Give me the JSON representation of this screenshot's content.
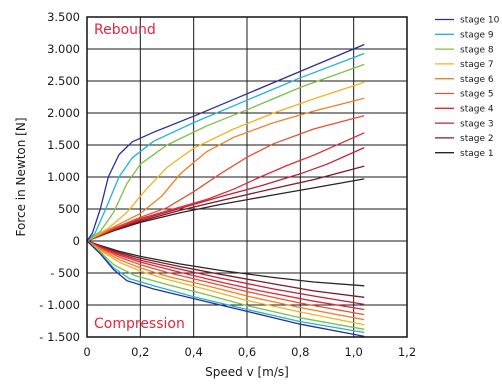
{
  "chart_data": {
    "type": "line",
    "xlabel": "Speed v [m/s]",
    "ylabel": "Force in Newton [N]",
    "xlim": [
      0,
      1.2
    ],
    "ylim": [
      -1500,
      3500
    ],
    "x_ticks": [
      0,
      0.2,
      0.4,
      0.6,
      0.8,
      1.0,
      1.2
    ],
    "x_tick_labels": [
      "0",
      "0,2",
      "0,4",
      "0,6",
      "0,8",
      "1,0",
      "1,2"
    ],
    "y_ticks": [
      -1500,
      -1000,
      -500,
      0,
      500,
      1000,
      1500,
      2000,
      2500,
      3000,
      3500
    ],
    "y_tick_labels": [
      "- 1.500",
      "- 1.000",
      "- 500",
      "0",
      "500",
      "1.000",
      "1.500",
      "2.000",
      "2.500",
      "3.000",
      "3.500"
    ],
    "grid": true,
    "legend_position": "right",
    "annotations": [
      {
        "text": "Rebound",
        "color": "#e3263b",
        "region": "top-left"
      },
      {
        "text": "Compression",
        "color": "#e3263b",
        "region": "bottom-left"
      }
    ],
    "series": [
      {
        "name": "stage 10",
        "color": "#2b2f9a",
        "rebound": [
          [
            0,
            0
          ],
          [
            0.02,
            120
          ],
          [
            0.05,
            500
          ],
          [
            0.08,
            1000
          ],
          [
            0.12,
            1350
          ],
          [
            0.17,
            1550
          ],
          [
            0.25,
            1700
          ],
          [
            0.4,
            1950
          ],
          [
            0.6,
            2300
          ],
          [
            0.8,
            2650
          ],
          [
            1.04,
            3070
          ]
        ],
        "compression": [
          [
            0,
            0
          ],
          [
            0.05,
            -200
          ],
          [
            0.1,
            -450
          ],
          [
            0.15,
            -620
          ],
          [
            0.25,
            -750
          ],
          [
            0.4,
            -900
          ],
          [
            0.6,
            -1100
          ],
          [
            0.8,
            -1300
          ],
          [
            1.04,
            -1490
          ]
        ]
      },
      {
        "name": "stage 9",
        "color": "#1fb5d6",
        "rebound": [
          [
            0,
            0
          ],
          [
            0.03,
            120
          ],
          [
            0.07,
            500
          ],
          [
            0.12,
            1000
          ],
          [
            0.17,
            1300
          ],
          [
            0.25,
            1560
          ],
          [
            0.4,
            1850
          ],
          [
            0.6,
            2200
          ],
          [
            0.8,
            2550
          ],
          [
            1.04,
            2930
          ]
        ],
        "compression": [
          [
            0,
            0
          ],
          [
            0.05,
            -190
          ],
          [
            0.1,
            -420
          ],
          [
            0.16,
            -590
          ],
          [
            0.25,
            -700
          ],
          [
            0.4,
            -870
          ],
          [
            0.6,
            -1070
          ],
          [
            0.8,
            -1260
          ],
          [
            1.04,
            -1430
          ]
        ]
      },
      {
        "name": "stage 8",
        "color": "#7cc242",
        "rebound": [
          [
            0,
            0
          ],
          [
            0.05,
            150
          ],
          [
            0.1,
            450
          ],
          [
            0.15,
            900
          ],
          [
            0.2,
            1200
          ],
          [
            0.3,
            1500
          ],
          [
            0.45,
            1800
          ],
          [
            0.6,
            2050
          ],
          [
            0.8,
            2400
          ],
          [
            1.04,
            2760
          ]
        ],
        "compression": [
          [
            0,
            0
          ],
          [
            0.05,
            -170
          ],
          [
            0.1,
            -370
          ],
          [
            0.18,
            -540
          ],
          [
            0.3,
            -680
          ],
          [
            0.45,
            -840
          ],
          [
            0.6,
            -1010
          ],
          [
            0.8,
            -1200
          ],
          [
            1.04,
            -1380
          ]
        ]
      },
      {
        "name": "stage 7",
        "color": "#f6b21d",
        "rebound": [
          [
            0,
            0
          ],
          [
            0.08,
            200
          ],
          [
            0.15,
            450
          ],
          [
            0.22,
            800
          ],
          [
            0.3,
            1150
          ],
          [
            0.4,
            1450
          ],
          [
            0.55,
            1750
          ],
          [
            0.7,
            2000
          ],
          [
            0.85,
            2220
          ],
          [
            1.04,
            2480
          ]
        ],
        "compression": [
          [
            0,
            0
          ],
          [
            0.05,
            -150
          ],
          [
            0.12,
            -330
          ],
          [
            0.2,
            -470
          ],
          [
            0.3,
            -600
          ],
          [
            0.45,
            -760
          ],
          [
            0.6,
            -930
          ],
          [
            0.8,
            -1110
          ],
          [
            1.04,
            -1310
          ]
        ]
      },
      {
        "name": "stage 6",
        "color": "#f07e2d",
        "rebound": [
          [
            0,
            0
          ],
          [
            0.1,
            220
          ],
          [
            0.2,
            430
          ],
          [
            0.28,
            700
          ],
          [
            0.35,
            1050
          ],
          [
            0.45,
            1400
          ],
          [
            0.55,
            1620
          ],
          [
            0.7,
            1850
          ],
          [
            0.85,
            2030
          ],
          [
            1.04,
            2230
          ]
        ],
        "compression": [
          [
            0,
            0
          ],
          [
            0.05,
            -130
          ],
          [
            0.12,
            -290
          ],
          [
            0.2,
            -420
          ],
          [
            0.3,
            -550
          ],
          [
            0.45,
            -700
          ],
          [
            0.6,
            -860
          ],
          [
            0.8,
            -1040
          ],
          [
            1.04,
            -1230
          ]
        ]
      },
      {
        "name": "stage 5",
        "color": "#ec4f32",
        "rebound": [
          [
            0,
            0
          ],
          [
            0.1,
            200
          ],
          [
            0.2,
            370
          ],
          [
            0.3,
            520
          ],
          [
            0.4,
            770
          ],
          [
            0.5,
            1050
          ],
          [
            0.6,
            1310
          ],
          [
            0.7,
            1520
          ],
          [
            0.85,
            1750
          ],
          [
            1.04,
            1960
          ]
        ],
        "compression": [
          [
            0,
            0
          ],
          [
            0.05,
            -110
          ],
          [
            0.12,
            -250
          ],
          [
            0.2,
            -370
          ],
          [
            0.3,
            -490
          ],
          [
            0.45,
            -640
          ],
          [
            0.6,
            -790
          ],
          [
            0.8,
            -970
          ],
          [
            1.04,
            -1150
          ]
        ]
      },
      {
        "name": "stage 4",
        "color": "#e32a33",
        "rebound": [
          [
            0,
            0
          ],
          [
            0.1,
            190
          ],
          [
            0.2,
            350
          ],
          [
            0.3,
            470
          ],
          [
            0.45,
            650
          ],
          [
            0.55,
            810
          ],
          [
            0.65,
            1000
          ],
          [
            0.75,
            1180
          ],
          [
            0.85,
            1340
          ],
          [
            1.04,
            1690
          ]
        ],
        "compression": [
          [
            0,
            0
          ],
          [
            0.05,
            -100
          ],
          [
            0.12,
            -220
          ],
          [
            0.2,
            -330
          ],
          [
            0.35,
            -490
          ],
          [
            0.5,
            -640
          ],
          [
            0.65,
            -780
          ],
          [
            0.85,
            -940
          ],
          [
            1.04,
            -1070
          ]
        ]
      },
      {
        "name": "stage 3",
        "color": "#c41e3a",
        "rebound": [
          [
            0,
            0
          ],
          [
            0.1,
            180
          ],
          [
            0.2,
            330
          ],
          [
            0.35,
            510
          ],
          [
            0.5,
            690
          ],
          [
            0.65,
            860
          ],
          [
            0.8,
            1050
          ],
          [
            0.9,
            1200
          ],
          [
            1.04,
            1460
          ]
        ],
        "compression": [
          [
            0,
            0
          ],
          [
            0.05,
            -90
          ],
          [
            0.12,
            -200
          ],
          [
            0.2,
            -300
          ],
          [
            0.35,
            -440
          ],
          [
            0.5,
            -580
          ],
          [
            0.7,
            -750
          ],
          [
            0.85,
            -860
          ],
          [
            1.04,
            -990
          ]
        ]
      },
      {
        "name": "stage 2",
        "color": "#7d1a25",
        "rebound": [
          [
            0,
            0
          ],
          [
            0.1,
            170
          ],
          [
            0.2,
            310
          ],
          [
            0.35,
            480
          ],
          [
            0.5,
            630
          ],
          [
            0.7,
            820
          ],
          [
            0.85,
            960
          ],
          [
            1.04,
            1170
          ]
        ],
        "compression": [
          [
            0,
            0
          ],
          [
            0.05,
            -80
          ],
          [
            0.12,
            -180
          ],
          [
            0.2,
            -270
          ],
          [
            0.35,
            -400
          ],
          [
            0.5,
            -520
          ],
          [
            0.7,
            -670
          ],
          [
            0.85,
            -780
          ],
          [
            1.04,
            -880
          ]
        ]
      },
      {
        "name": "stage 1",
        "color": "#2a2522",
        "rebound": [
          [
            0,
            0
          ],
          [
            0.1,
            160
          ],
          [
            0.2,
            290
          ],
          [
            0.35,
            440
          ],
          [
            0.5,
            570
          ],
          [
            0.7,
            720
          ],
          [
            0.85,
            830
          ],
          [
            1.04,
            970
          ]
        ],
        "compression": [
          [
            0,
            0
          ],
          [
            0.05,
            -70
          ],
          [
            0.12,
            -160
          ],
          [
            0.2,
            -240
          ],
          [
            0.35,
            -360
          ],
          [
            0.5,
            -460
          ],
          [
            0.7,
            -570
          ],
          [
            0.85,
            -640
          ],
          [
            1.04,
            -700
          ]
        ]
      }
    ]
  }
}
